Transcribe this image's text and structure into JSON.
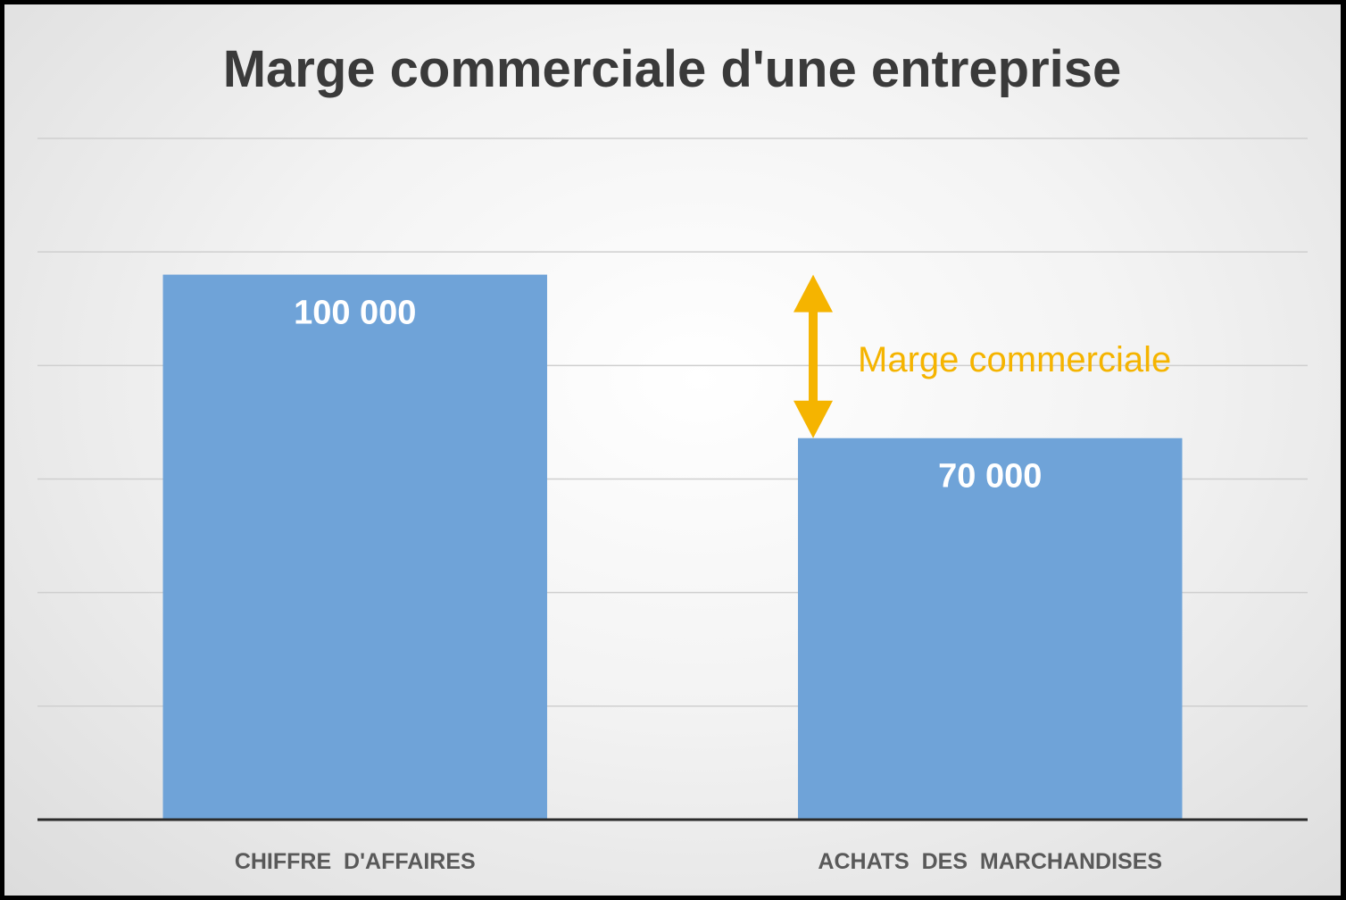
{
  "chart_data": {
    "type": "bar",
    "title": "Marge commerciale d'une entreprise",
    "categories": [
      "CHIFFRE  D'AFFAIRES",
      "ACHATS  DES  MARCHANDISES"
    ],
    "values": [
      100000,
      70000
    ],
    "value_labels": [
      "100 000",
      "70 000"
    ],
    "ylim": [
      0,
      125000
    ],
    "gridlines": true,
    "legend": "none",
    "bar_color": "#6fa3d8",
    "annotation": {
      "text": "Marge commerciale",
      "from_value": 100000,
      "to_value": 70000,
      "category_index": 1,
      "color": "#f5b400"
    }
  }
}
